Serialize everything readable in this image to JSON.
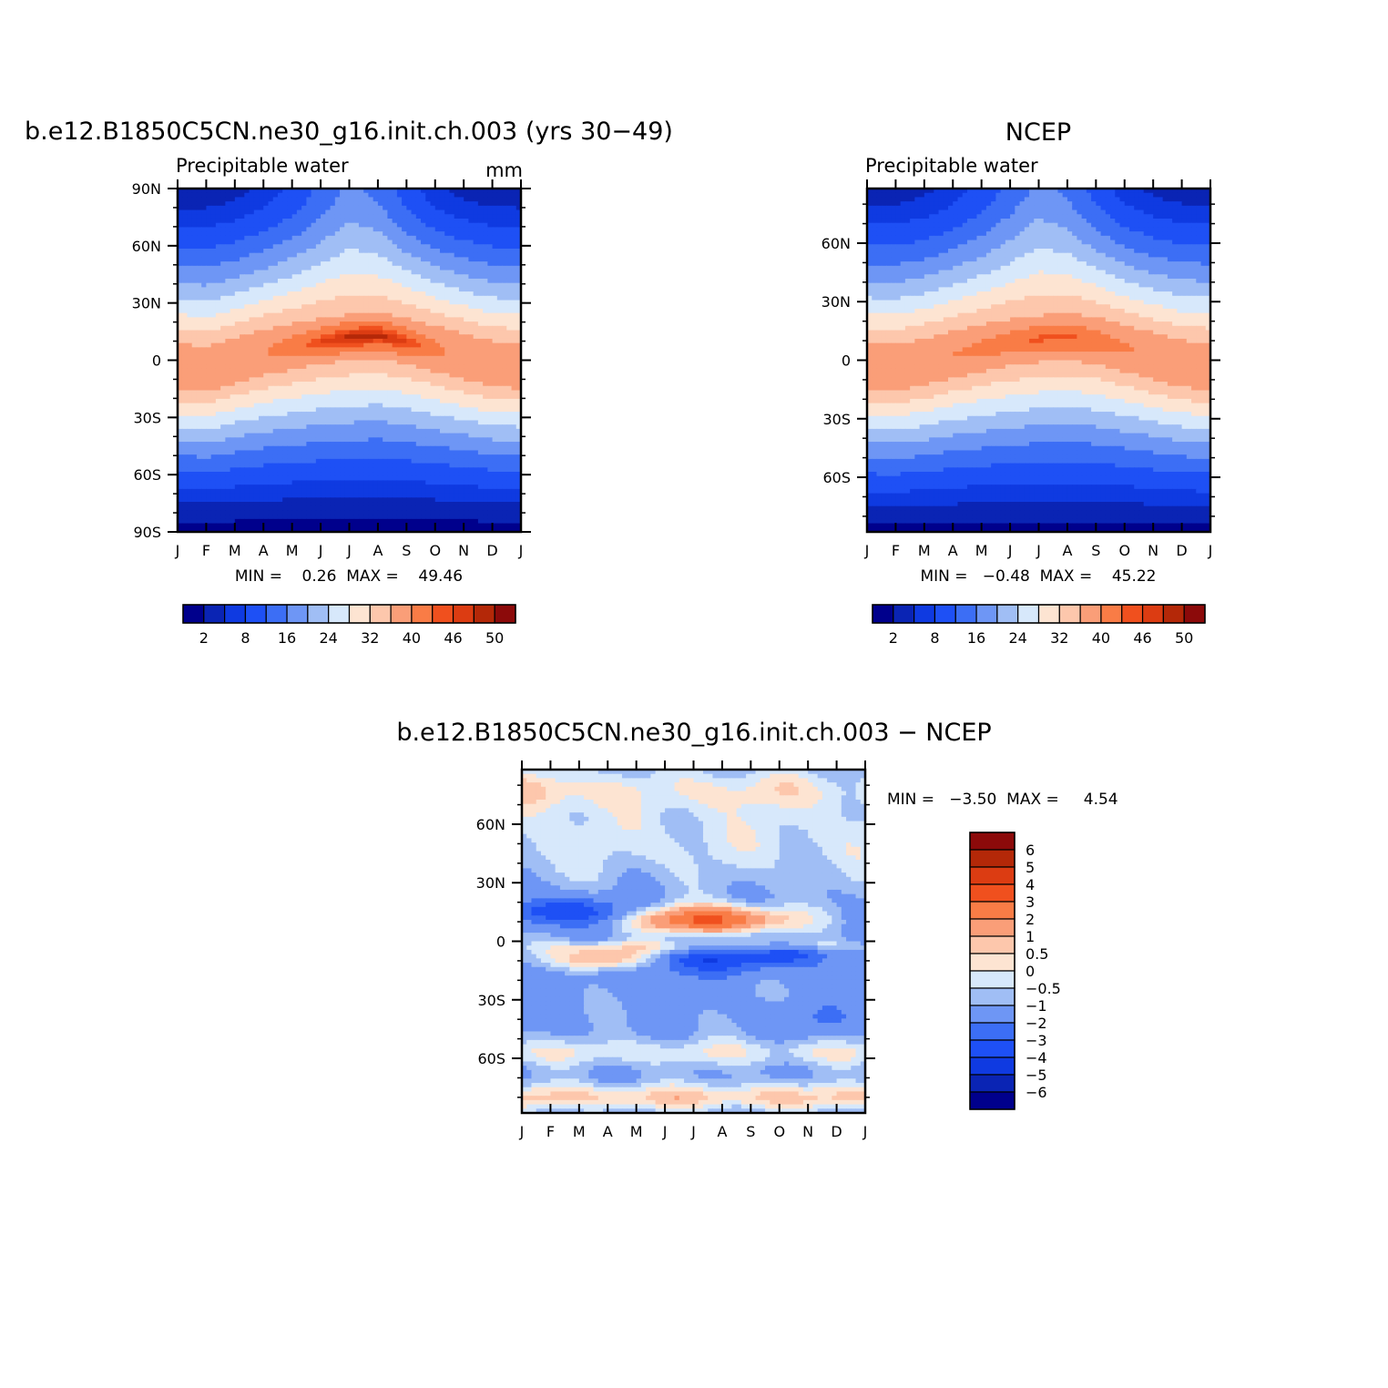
{
  "figure": {
    "panel_model_title": "b.e12.B1850C5CN.ne30_g16.init.ch.003 (yrs 30−49)",
    "panel_obs_title": "NCEP",
    "panel_diff_title": "b.e12.B1850C5CN.ne30_g16.init.ch.003 − NCEP"
  },
  "chart_data": [
    {
      "type": "heatmap",
      "id": "model",
      "left_string": "Precipitable water",
      "right_string": "mm",
      "months": [
        "J",
        "F",
        "M",
        "A",
        "M",
        "J",
        "J",
        "A",
        "S",
        "O",
        "N",
        "D",
        "J"
      ],
      "lat_ticks": [
        "90N",
        "60N",
        "30N",
        "0",
        "30S",
        "60S",
        "90S"
      ],
      "lat_tick_values": [
        90,
        60,
        30,
        0,
        -30,
        -60,
        -90
      ],
      "ylim": [
        -90,
        90
      ],
      "stats": "MIN =    0.26  MAX =    49.46",
      "min": 0.26,
      "max": 49.46,
      "itcz_lat": [
        -3,
        -5,
        0,
        4,
        7,
        10,
        12,
        13,
        10,
        6,
        2,
        -2,
        -3
      ],
      "peak": [
        36,
        36,
        38,
        40,
        43,
        46,
        49,
        49,
        46,
        42,
        38,
        36,
        36
      ],
      "polar_n": [
        3,
        3,
        4,
        6,
        9,
        13,
        17,
        15,
        10,
        6,
        4,
        3,
        3
      ],
      "polar_s": [
        1,
        1,
        1,
        1,
        1,
        1,
        1,
        1,
        1,
        1,
        1,
        1,
        1
      ],
      "colorbar_labels": [
        "2",
        "8",
        "16",
        "24",
        "32",
        "40",
        "46",
        "50"
      ],
      "levels": [
        2,
        5,
        8,
        12,
        16,
        20,
        24,
        28,
        32,
        36,
        40,
        44,
        46,
        48,
        50
      ]
    },
    {
      "type": "heatmap",
      "id": "ncep",
      "left_string": "Precipitable water",
      "right_string": "",
      "months": [
        "J",
        "F",
        "M",
        "A",
        "M",
        "J",
        "J",
        "A",
        "S",
        "O",
        "N",
        "D",
        "J"
      ],
      "lat_ticks": [
        "60N",
        "30N",
        "0",
        "30S",
        "60S"
      ],
      "lat_tick_values": [
        60,
        30,
        0,
        -30,
        -60
      ],
      "ylim": [
        -88,
        88
      ],
      "stats": "MIN =   −0.48  MAX =    45.22",
      "min": -0.48,
      "max": 45.22,
      "itcz_lat": [
        -3,
        -4,
        -1,
        3,
        6,
        9,
        11,
        12,
        10,
        6,
        2,
        -2,
        -3
      ],
      "peak": [
        38,
        38,
        39,
        40,
        42,
        43,
        45,
        45,
        43,
        41,
        39,
        38,
        38
      ],
      "polar_n": [
        3,
        3,
        4,
        6,
        9,
        13,
        17,
        15,
        10,
        6,
        4,
        3,
        3
      ],
      "polar_s": [
        1,
        1,
        1,
        1,
        1,
        1,
        1,
        1,
        1,
        1,
        1,
        1,
        1
      ],
      "colorbar_labels": [
        "2",
        "8",
        "16",
        "24",
        "32",
        "40",
        "46",
        "50"
      ],
      "levels": [
        2,
        5,
        8,
        12,
        16,
        20,
        24,
        28,
        32,
        36,
        40,
        44,
        46,
        48,
        50
      ]
    },
    {
      "type": "heatmap",
      "id": "diff",
      "months": [
        "J",
        "F",
        "M",
        "A",
        "M",
        "J",
        "J",
        "A",
        "S",
        "O",
        "N",
        "D",
        "J"
      ],
      "lat_ticks": [
        "60N",
        "30N",
        "0",
        "30S",
        "60S"
      ],
      "lat_tick_values": [
        60,
        30,
        0,
        -30,
        -60
      ],
      "ylim": [
        -88,
        88
      ],
      "stats": "MIN =   −3.50  MAX =     4.54",
      "min": -3.5,
      "max": 4.54,
      "colorbar_labels": [
        "6",
        "5",
        "4",
        "3",
        "2",
        "1",
        "0.5",
        "0",
        "−0.5",
        "−1",
        "−2",
        "−3",
        "−4",
        "−5",
        "−6"
      ],
      "levels": [
        -6,
        -5,
        -4,
        -3,
        -2,
        -1,
        -0.5,
        0,
        0.5,
        1,
        2,
        3,
        4,
        5,
        6
      ]
    }
  ],
  "colors": {
    "palette": [
      "#00008c",
      "#0a24b4",
      "#0f3ae1",
      "#1e50f5",
      "#3c6ef5",
      "#6e96f5",
      "#a0bef5",
      "#d7e8fb",
      "#fde4d2",
      "#fdc7ac",
      "#fa9e78",
      "#f97c46",
      "#f0501e",
      "#dc3c12",
      "#b42808",
      "#8c0a0a"
    ]
  }
}
